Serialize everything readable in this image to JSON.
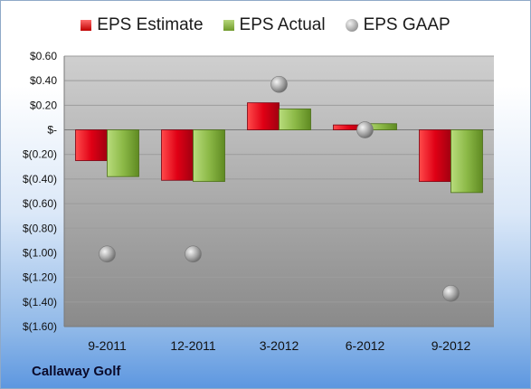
{
  "company": "Callaway Golf",
  "legend": {
    "estimate": "EPS Estimate",
    "actual": "EPS Actual",
    "gaap": "EPS GAAP"
  },
  "colors": {
    "estimate": "#d9001b",
    "actual": "#86b33a",
    "gaap": "#a6a6a6"
  },
  "chart_data": {
    "type": "bar",
    "categories": [
      "9-2011",
      "12-2011",
      "3-2012",
      "6-2012",
      "9-2012"
    ],
    "series": [
      {
        "name": "EPS Estimate",
        "kind": "bar",
        "values": [
          -0.25,
          -0.41,
          0.22,
          0.04,
          -0.42
        ]
      },
      {
        "name": "EPS Actual",
        "kind": "bar",
        "values": [
          -0.38,
          -0.42,
          0.17,
          0.05,
          -0.51
        ]
      },
      {
        "name": "EPS GAAP",
        "kind": "scatter",
        "values": [
          -1.01,
          -1.01,
          0.37,
          0.0,
          -1.33
        ]
      }
    ],
    "ylim": [
      -1.6,
      0.6
    ],
    "yticks": [
      0.6,
      0.4,
      0.2,
      0.0,
      -0.2,
      -0.4,
      -0.6,
      -0.8,
      -1.0,
      -1.2,
      -1.4,
      -1.6
    ],
    "ytick_labels": [
      "$0.60",
      "$0.40",
      "$0.20",
      "$-",
      "$(0.20)",
      "$(0.40)",
      "$(0.60)",
      "$(0.80)",
      "$(1.00)",
      "$(1.20)",
      "$(1.40)",
      "$(1.60)"
    ],
    "grid": true,
    "legend_position": "top",
    "title": "",
    "xlabel": "",
    "ylabel": ""
  }
}
